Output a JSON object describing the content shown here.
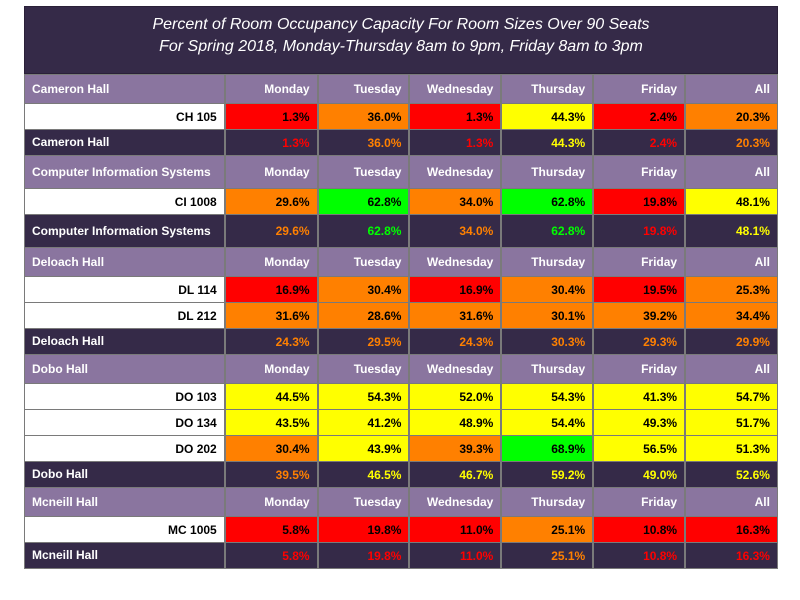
{
  "chart_data": {
    "type": "table",
    "title": "Percent of Room Occupancy Capacity For Room Sizes Over 90 Seats",
    "subtitle": "For Spring 2018, Monday-Thursday 8am to 9pm, Friday 8am to 3pm",
    "columns": [
      "Monday",
      "Tuesday",
      "Wednesday",
      "Thursday",
      "Friday",
      "All"
    ],
    "color_scale": {
      "red": "#ff0000",
      "orange": "#ff8000",
      "yellow": "#ffff00",
      "green": "#00ff00"
    },
    "groups": [
      {
        "name": "Cameron Hall",
        "rooms": [
          {
            "room": "CH 105",
            "values": [
              "1.3%",
              "36.0%",
              "1.3%",
              "44.3%",
              "2.4%",
              "20.3%"
            ],
            "colors": [
              "red",
              "orange",
              "red",
              "yellow",
              "red",
              "orange"
            ]
          }
        ],
        "total": {
          "label": "Cameron Hall",
          "values": [
            "1.3%",
            "36.0%",
            "1.3%",
            "44.3%",
            "2.4%",
            "20.3%"
          ],
          "colors": [
            "red",
            "orange",
            "red",
            "yellow",
            "red",
            "orange"
          ]
        }
      },
      {
        "name": "Computer Information Systems",
        "rooms": [
          {
            "room": "CI 1008",
            "values": [
              "29.6%",
              "62.8%",
              "34.0%",
              "62.8%",
              "19.8%",
              "48.1%"
            ],
            "colors": [
              "orange",
              "green",
              "orange",
              "green",
              "red",
              "yellow"
            ]
          }
        ],
        "total": {
          "label": "Computer Information Systems",
          "values": [
            "29.6%",
            "62.8%",
            "34.0%",
            "62.8%",
            "19.8%",
            "48.1%"
          ],
          "colors": [
            "orange",
            "green",
            "orange",
            "green",
            "red",
            "yellow"
          ]
        }
      },
      {
        "name": "Deloach Hall",
        "rooms": [
          {
            "room": "DL 114",
            "values": [
              "16.9%",
              "30.4%",
              "16.9%",
              "30.4%",
              "19.5%",
              "25.3%"
            ],
            "colors": [
              "red",
              "orange",
              "red",
              "orange",
              "red",
              "orange"
            ]
          },
          {
            "room": "DL 212",
            "values": [
              "31.6%",
              "28.6%",
              "31.6%",
              "30.1%",
              "39.2%",
              "34.4%"
            ],
            "colors": [
              "orange",
              "orange",
              "orange",
              "orange",
              "orange",
              "orange"
            ]
          }
        ],
        "total": {
          "label": "Deloach Hall",
          "values": [
            "24.3%",
            "29.5%",
            "24.3%",
            "30.3%",
            "29.3%",
            "29.9%"
          ],
          "colors": [
            "orange",
            "orange",
            "orange",
            "orange",
            "orange",
            "orange"
          ]
        }
      },
      {
        "name": "Dobo Hall",
        "rooms": [
          {
            "room": "DO 103",
            "values": [
              "44.5%",
              "54.3%",
              "52.0%",
              "54.3%",
              "41.3%",
              "54.7%"
            ],
            "colors": [
              "yellow",
              "yellow",
              "yellow",
              "yellow",
              "yellow",
              "yellow"
            ]
          },
          {
            "room": "DO 134",
            "values": [
              "43.5%",
              "41.2%",
              "48.9%",
              "54.4%",
              "49.3%",
              "51.7%"
            ],
            "colors": [
              "yellow",
              "yellow",
              "yellow",
              "yellow",
              "yellow",
              "yellow"
            ]
          },
          {
            "room": "DO 202",
            "values": [
              "30.4%",
              "43.9%",
              "39.3%",
              "68.9%",
              "56.5%",
              "51.3%"
            ],
            "colors": [
              "orange",
              "yellow",
              "orange",
              "green",
              "yellow",
              "yellow"
            ]
          }
        ],
        "total": {
          "label": "Dobo Hall",
          "values": [
            "39.5%",
            "46.5%",
            "46.7%",
            "59.2%",
            "49.0%",
            "52.6%"
          ],
          "colors": [
            "orange",
            "yellow",
            "yellow",
            "yellow",
            "yellow",
            "yellow"
          ]
        }
      },
      {
        "name": "Mcneill Hall",
        "rooms": [
          {
            "room": "MC 1005",
            "values": [
              "5.8%",
              "19.8%",
              "11.0%",
              "25.1%",
              "10.8%",
              "16.3%"
            ],
            "colors": [
              "red",
              "red",
              "red",
              "orange",
              "red",
              "red"
            ]
          }
        ],
        "total": {
          "label": "Mcneill Hall",
          "values": [
            "5.8%",
            "19.8%",
            "11.0%",
            "25.1%",
            "10.8%",
            "16.3%"
          ],
          "colors": [
            "red",
            "red",
            "red",
            "orange",
            "red",
            "red"
          ]
        }
      }
    ]
  }
}
